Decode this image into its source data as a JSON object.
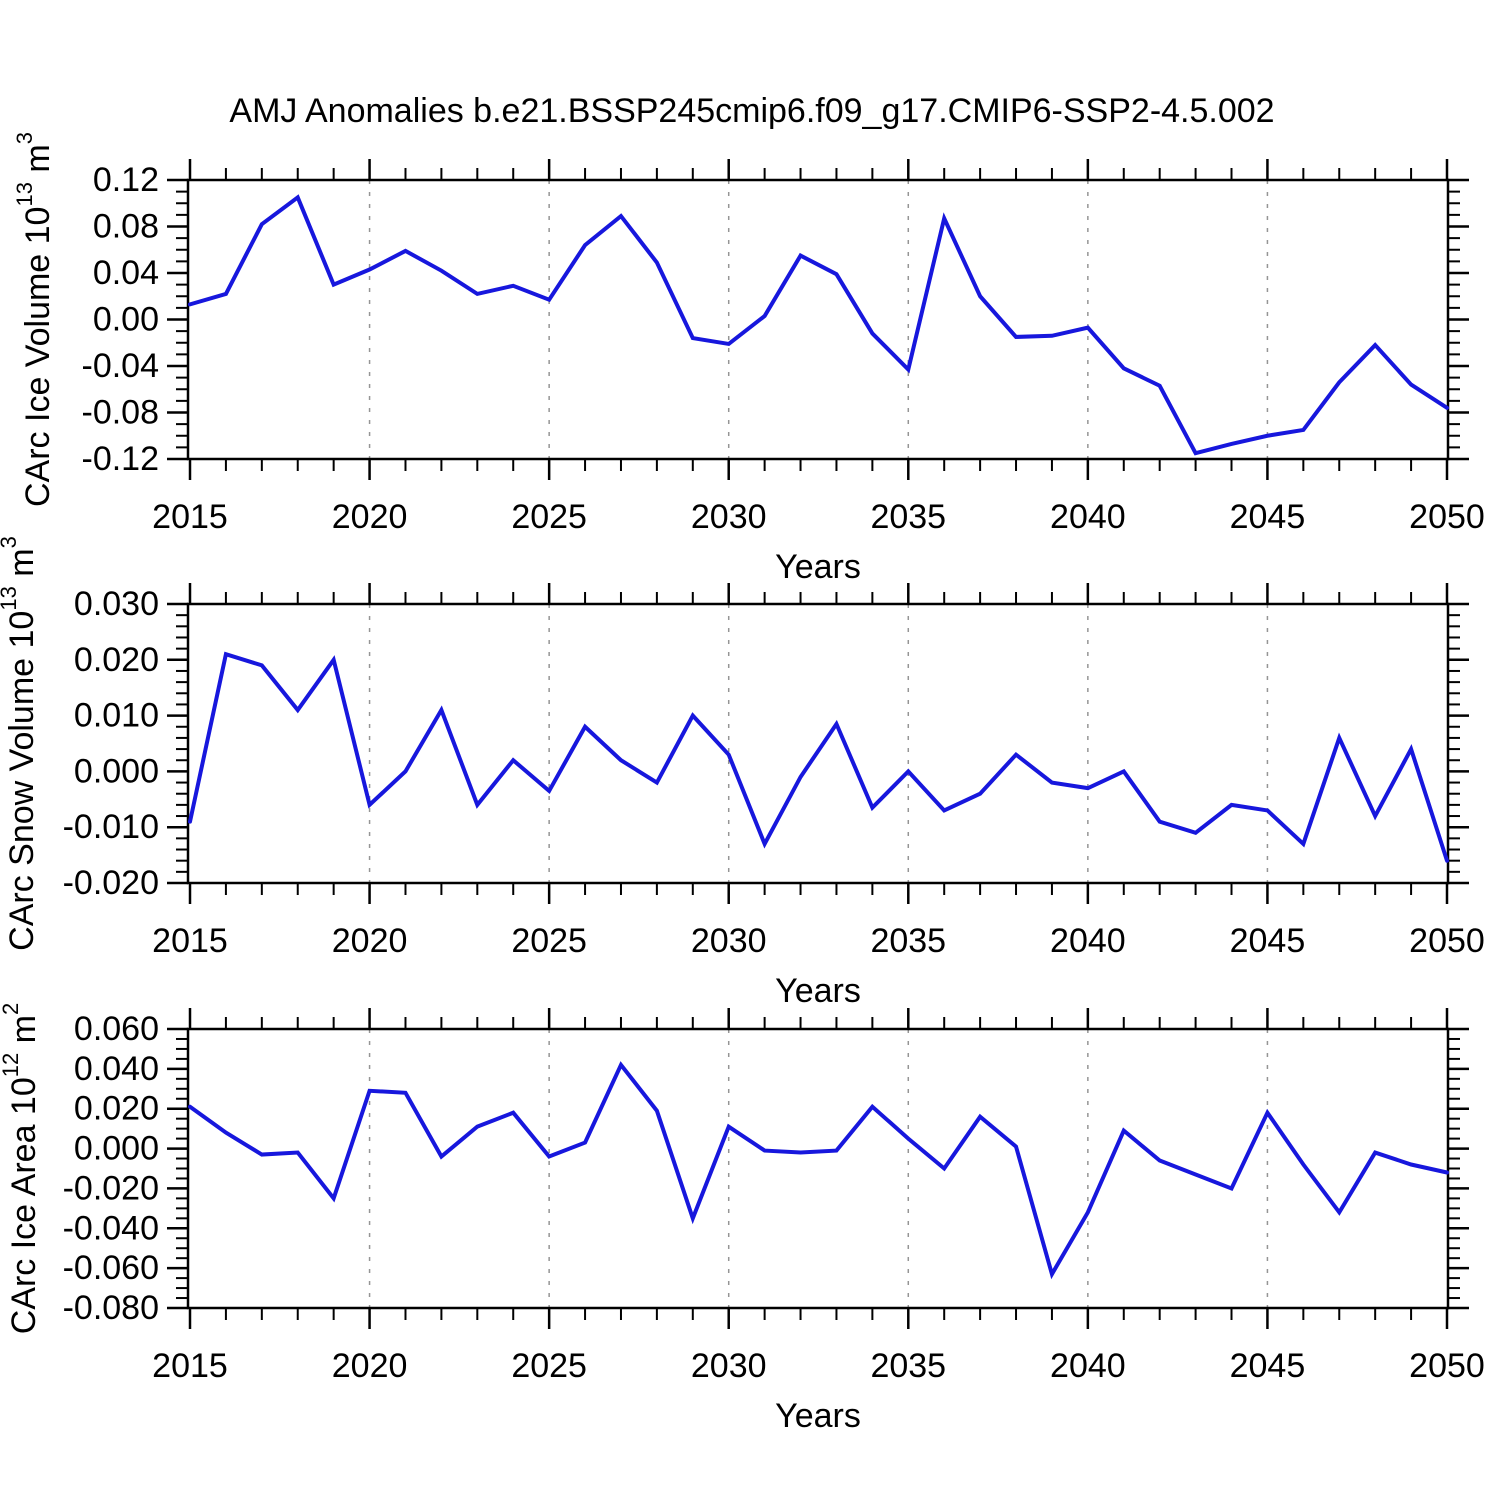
{
  "title": "AMJ Anomalies b.e21.BSSP245cmip6.f09_g17.CMIP6-SSP2-4.5.002",
  "colors": {
    "line": "#1717dd",
    "axis": "#000000",
    "grid": "#959595",
    "background": "#ffffff",
    "text": "#000000"
  },
  "x_axis": {
    "label": "Years",
    "start_year": 2015,
    "end_year": 2050,
    "major_tick_step": 5,
    "minor_tick_step": 1,
    "tick_labels": [
      "2015",
      "2020",
      "2025",
      "2030",
      "2035",
      "2040",
      "2045",
      "2050"
    ],
    "gridline_years": [
      2020,
      2025,
      2030,
      2035,
      2040,
      2045
    ]
  },
  "years": [
    2015,
    2016,
    2017,
    2018,
    2019,
    2020,
    2021,
    2022,
    2023,
    2024,
    2025,
    2026,
    2027,
    2028,
    2029,
    2030,
    2031,
    2032,
    2033,
    2034,
    2035,
    2036,
    2037,
    2038,
    2039,
    2040,
    2041,
    2042,
    2043,
    2044,
    2045,
    2046,
    2047,
    2048,
    2049,
    2050
  ],
  "chart_data": [
    {
      "type": "line",
      "name": "ice-volume",
      "ylabel": "CArc Ice Volume 10^13 m^3",
      "ylabel_parts": [
        {
          "text": "CArc Ice Volume 10"
        },
        {
          "text": "13",
          "sup": true
        },
        {
          "text": " m"
        },
        {
          "text": "3",
          "sup": true
        }
      ],
      "ylim": [
        -0.12,
        0.12
      ],
      "ymajor": 0.04,
      "yminor": 0.01,
      "ytick_labels": [
        "0.12",
        "0.08",
        "0.04",
        "0.00",
        "-0.04",
        "-0.08",
        "-0.12"
      ],
      "xlabel": "Years",
      "grid": "vertical-dashed",
      "legend": "none",
      "values": [
        0.013,
        0.022,
        0.082,
        0.105,
        0.03,
        0.043,
        0.059,
        0.042,
        0.022,
        0.029,
        0.017,
        0.064,
        0.089,
        0.049,
        -0.016,
        -0.021,
        0.003,
        0.055,
        0.039,
        -0.012,
        -0.043,
        0.087,
        0.02,
        -0.015,
        -0.014,
        -0.007,
        -0.042,
        -0.057,
        -0.115,
        -0.107,
        -0.1,
        -0.095,
        -0.054,
        -0.022,
        -0.056,
        -0.076
      ]
    },
    {
      "type": "line",
      "name": "snow-volume",
      "ylabel": "CArc Snow Volume 10^13 m^3",
      "ylabel_parts": [
        {
          "text": "CArc Snow Volume 10"
        },
        {
          "text": "13",
          "sup": true
        },
        {
          "text": " m"
        },
        {
          "text": "3",
          "sup": true
        }
      ],
      "ylim": [
        -0.02,
        0.03
      ],
      "ymajor": 0.01,
      "yminor": 0.002,
      "ytick_labels": [
        "0.030",
        "0.020",
        "0.010",
        "0.000",
        "-0.010",
        "-0.020"
      ],
      "xlabel": "Years",
      "grid": "vertical-dashed",
      "legend": "none",
      "values": [
        -0.009,
        0.021,
        0.019,
        0.011,
        0.02,
        -0.006,
        0.0,
        0.011,
        -0.006,
        0.002,
        -0.0035,
        0.008,
        0.002,
        -0.002,
        0.01,
        0.003,
        -0.013,
        -0.001,
        0.0085,
        -0.0065,
        0.0,
        -0.007,
        -0.004,
        0.003,
        -0.002,
        -0.003,
        0.0,
        -0.009,
        -0.011,
        -0.006,
        -0.007,
        -0.013,
        0.006,
        -0.008,
        0.004,
        -0.016
      ]
    },
    {
      "type": "line",
      "name": "ice-area",
      "ylabel": "CArc Ice Area 10^12 m^2",
      "ylabel_parts": [
        {
          "text": "CArc Ice Area 10"
        },
        {
          "text": "12",
          "sup": true
        },
        {
          "text": " m"
        },
        {
          "text": "2",
          "sup": true
        }
      ],
      "ylim": [
        -0.08,
        0.06
      ],
      "ymajor": 0.02,
      "yminor": 0.005,
      "ytick_labels": [
        "0.060",
        "0.040",
        "0.020",
        "0.000",
        "-0.020",
        "-0.040",
        "-0.060",
        "-0.080"
      ],
      "xlabel": "Years",
      "grid": "vertical-dashed",
      "legend": "none",
      "values": [
        0.021,
        0.008,
        -0.003,
        -0.002,
        -0.025,
        0.029,
        0.028,
        -0.004,
        0.011,
        0.018,
        -0.004,
        0.003,
        0.042,
        0.019,
        -0.035,
        0.011,
        -0.001,
        -0.002,
        -0.001,
        0.021,
        0.005,
        -0.01,
        0.016,
        0.001,
        -0.063,
        -0.032,
        0.009,
        -0.006,
        -0.013,
        -0.02,
        0.018,
        -0.008,
        -0.032,
        -0.002,
        -0.008,
        -0.012
      ]
    }
  ]
}
